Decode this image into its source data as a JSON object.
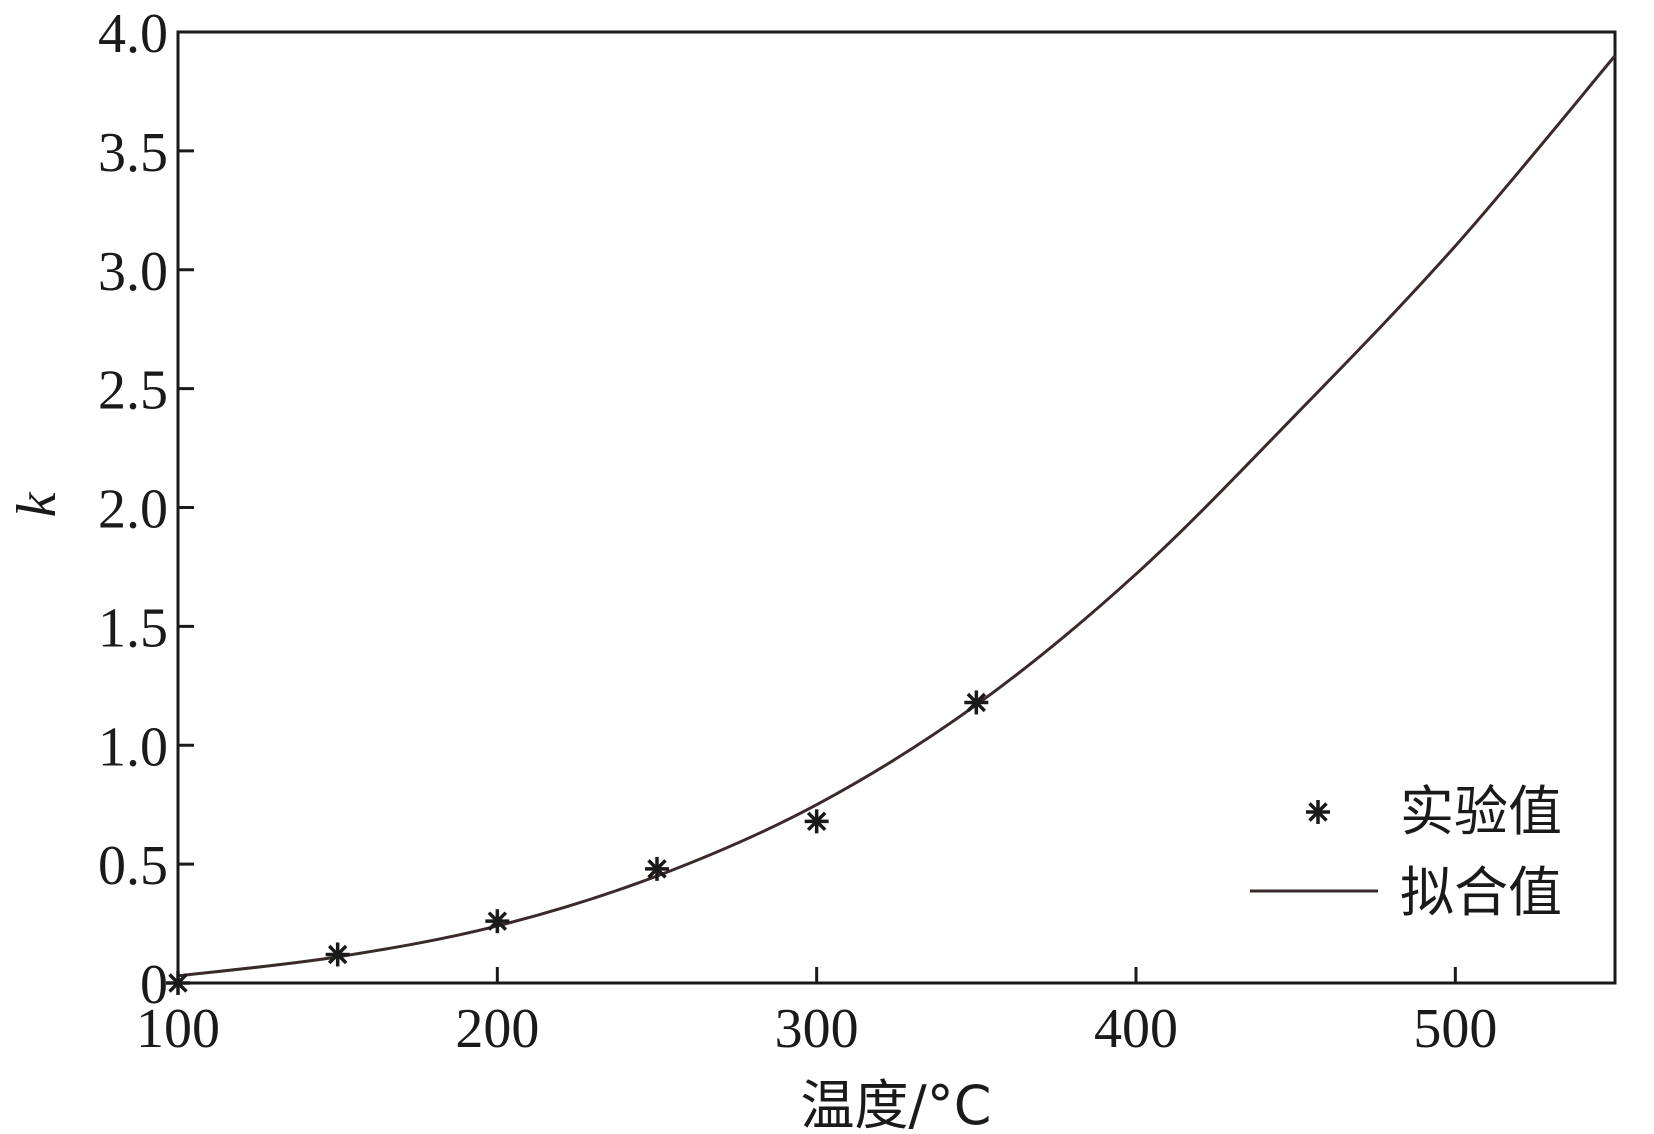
{
  "chart_data": {
    "type": "line",
    "title": "",
    "xlabel": "温度/°C",
    "ylabel": "k",
    "xlim": [
      100,
      550
    ],
    "ylim": [
      0,
      4.0
    ],
    "x_ticks": [
      100,
      200,
      300,
      400,
      500
    ],
    "x_tick_labels": [
      "100",
      "200",
      "300",
      "400",
      "500"
    ],
    "y_ticks": [
      0,
      0.5,
      1.0,
      1.5,
      2.0,
      2.5,
      3.0,
      3.5,
      4.0
    ],
    "y_tick_labels": [
      "0",
      "0.5",
      "1.0",
      "1.5",
      "2.0",
      "2.5",
      "3.0",
      "3.5",
      "4.0"
    ],
    "grid": false,
    "legend_position": "bottom-right",
    "series": [
      {
        "name": "实验值",
        "style": "marker-asterisk",
        "x": [
          100,
          150,
          200,
          250,
          300,
          350
        ],
        "y": [
          0,
          0.12,
          0.26,
          0.48,
          0.68,
          1.18
        ]
      },
      {
        "name": "拟合值",
        "style": "line",
        "x": [
          100,
          150,
          200,
          250,
          300,
          350,
          400,
          450,
          500,
          550
        ],
        "y": [
          0.03,
          0.11,
          0.24,
          0.45,
          0.75,
          1.17,
          1.72,
          2.39,
          3.1,
          3.9
        ]
      }
    ],
    "colors": {
      "axis": "#1a1a1a",
      "line": "#3a2a2a",
      "marker": "#1a1a1a"
    }
  }
}
